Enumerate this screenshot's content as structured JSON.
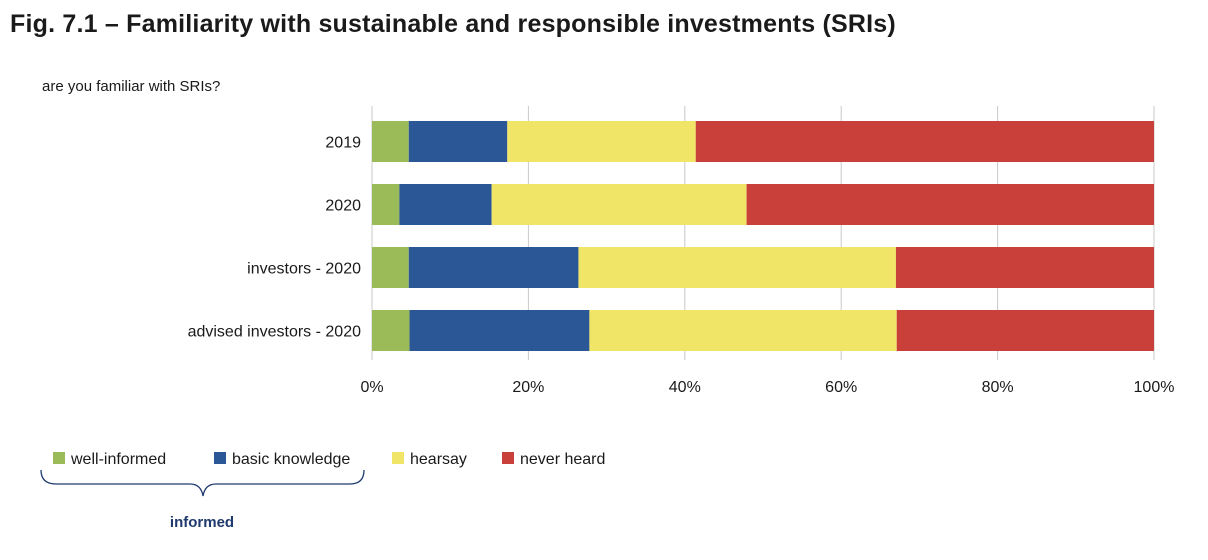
{
  "title": "Fig. 7.1 – Familiarity with sustainable and responsible investments (SRIs)",
  "subtitle": "are you familiar with SRIs?",
  "chart_data": {
    "type": "bar",
    "orientation": "horizontal",
    "stacked": "percent",
    "categories": [
      "2019",
      "2020",
      "investors - 2020",
      "advised investors - 2020"
    ],
    "series": [
      {
        "name": "well-informed",
        "color": "#9bbb59",
        "values": [
          4.7,
          3.5,
          4.7,
          4.8
        ]
      },
      {
        "name": "basic knowledge",
        "color": "#2b5797",
        "values": [
          12.6,
          11.8,
          21.7,
          23.0
        ]
      },
      {
        "name": "hearsay",
        "color": "#f0e567",
        "values": [
          24.1,
          32.6,
          40.6,
          39.3
        ]
      },
      {
        "name": "never heard",
        "color": "#c9403a",
        "values": [
          58.6,
          52.1,
          33.0,
          32.9
        ]
      }
    ],
    "xlim": [
      0,
      100
    ],
    "x_ticks": [
      "0%",
      "20%",
      "40%",
      "60%",
      "80%",
      "100%"
    ],
    "grid": "vertical",
    "legend_position": "bottom-left",
    "legend_group": {
      "label": "informed",
      "members": [
        "well-informed",
        "basic knowledge"
      ]
    }
  }
}
